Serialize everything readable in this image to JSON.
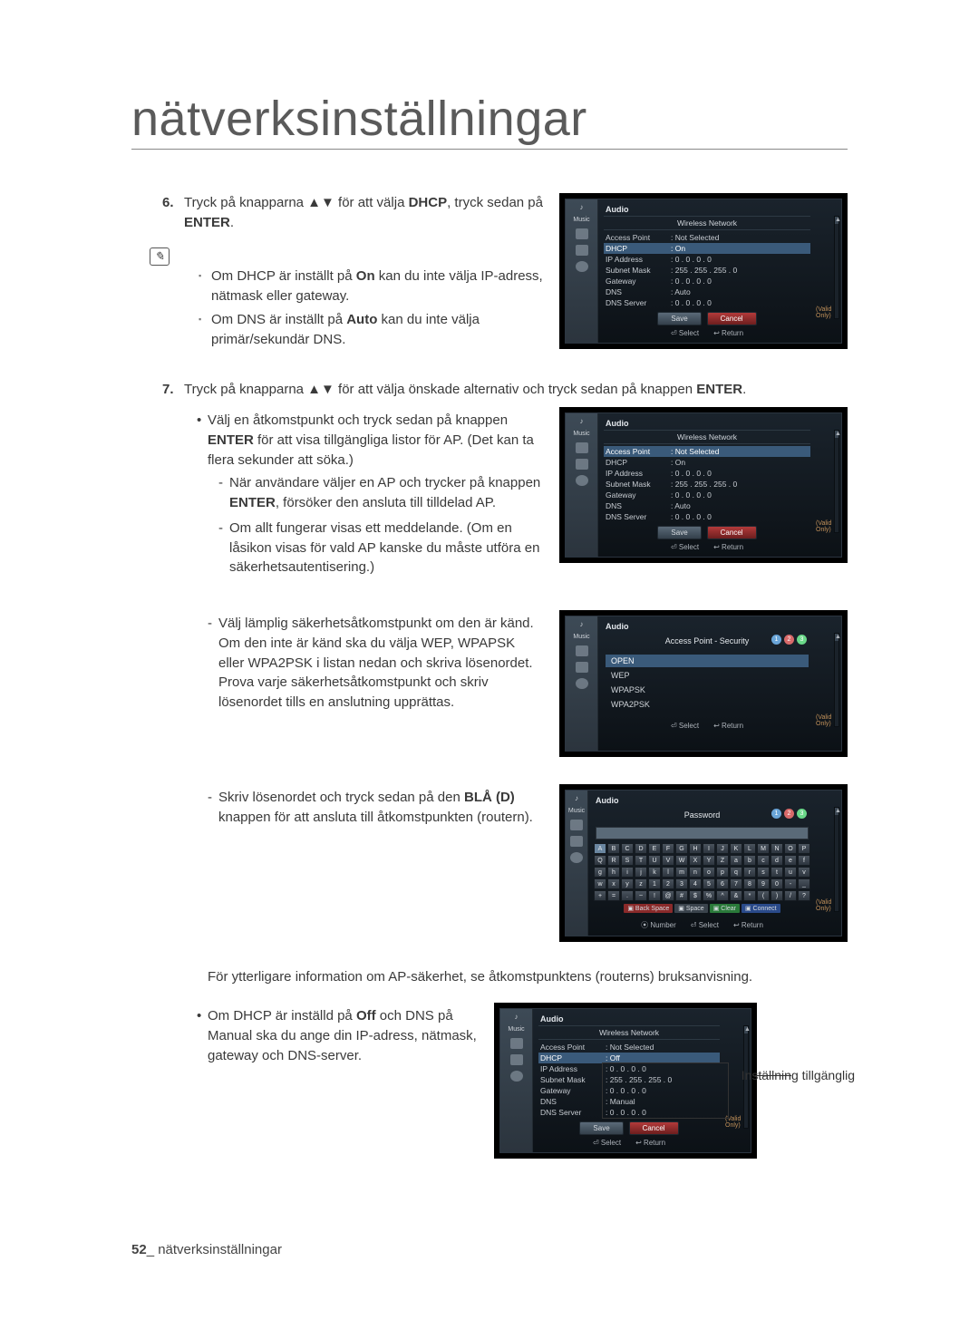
{
  "page": {
    "title": "nätverksinställningar",
    "footer_page": "52",
    "footer_text": "nätverksinställningar"
  },
  "step6": {
    "num": "6.",
    "text_before": "Tryck på knapparna ▲▼ för att välja ",
    "bold1": "DHCP",
    "text_mid": ", tryck sedan på ",
    "bold2": "ENTER",
    "text_after": ".",
    "note1_a": "Om DHCP är inställt på ",
    "note1_b": "On",
    "note1_c": " kan du inte välja IP-adress, nätmask eller gateway.",
    "note2_a": "Om DNS är inställt på ",
    "note2_b": "Auto",
    "note2_c": " kan du inte välja primär/sekundär DNS."
  },
  "step7": {
    "num": "7.",
    "intro_a": "Tryck på knapparna ▲▼ för att välja önskade alternativ och tryck sedan på knappen ",
    "intro_b": "ENTER",
    "intro_c": ".",
    "b1_a": "Välj en åtkomstpunkt och tryck sedan på knappen ",
    "b1_b": "ENTER",
    "b1_c": " för att visa tillgängliga listor för AP. (Det kan ta flera sekunder att söka.)",
    "d1_a": "När användare väljer en AP och trycker på knappen ",
    "d1_b": "ENTER",
    "d1_c": ", försöker den ansluta till tilldelad AP.",
    "d2": "Om allt fungerar visas ett meddelande. (Om en låsikon visas för vald AP kanske du måste utföra en säkerhetsautentisering.)",
    "d3": "Välj lämplig säkerhetsåtkomstpunkt om den är känd. Om den inte är känd ska du välja WEP, WPAPSK eller WPA2PSK i listan nedan och skriva lösenordet. Prova varje säkerhetsåtkomstpunkt och skriv lösenordet tills en anslutning upprättas.",
    "d4_a": "Skriv lösenordet och tryck sedan på den ",
    "d4_b": "BLÅ (D)",
    "d4_c": " knappen för att ansluta till åtkomstpunkten (routern).",
    "extra": "För ytterligare information om AP-säkerhet, se åtkomstpunktens (routerns) bruksanvisning.",
    "b2_a": "Om DHCP är inställd på ",
    "b2_b": "Off",
    "b2_c": " och DNS på Manual ska du ange din IP-adress, nätmask, gateway och DNS-server.",
    "annotation": "Inställning tillgänglig"
  },
  "tv_common": {
    "music": "Music",
    "photo": "Photo",
    "setup": "Setup",
    "audio": "Audio",
    "wireless": "Wireless Network",
    "select": "Select",
    "return": "Return",
    "number": "Number",
    "save": "Save",
    "cancel": "Cancel",
    "valid": "(Valid Only)",
    "ap_sec": "Access Point - Security",
    "password": "Password"
  },
  "tv1": {
    "rows": [
      [
        "Access Point",
        ": Not Selected"
      ],
      [
        "DHCP",
        ": On"
      ],
      [
        "IP Address",
        ": 0 . 0 . 0 . 0"
      ],
      [
        "Subnet Mask",
        ": 255 . 255 . 255 . 0"
      ],
      [
        "Gateway",
        ": 0 . 0 . 0 . 0"
      ],
      [
        "DNS",
        ": Auto"
      ],
      [
        "DNS Server",
        ": 0 . 0 . 0 . 0"
      ]
    ],
    "hl_index": 1
  },
  "tv2": {
    "rows": [
      [
        "Access Point",
        ": Not Selected"
      ],
      [
        "DHCP",
        ": On"
      ],
      [
        "IP Address",
        ": 0 . 0 . 0 . 0"
      ],
      [
        "Subnet Mask",
        ": 255 . 255 . 255 . 0"
      ],
      [
        "Gateway",
        ": 0 . 0 . 0 . 0"
      ],
      [
        "DNS",
        ": Auto"
      ],
      [
        "DNS Server",
        ": 0 . 0 . 0 . 0"
      ]
    ],
    "hl_index": 0
  },
  "tv3": {
    "items": [
      "OPEN",
      "WEP",
      "WPAPSK",
      "WPA2PSK"
    ],
    "sel": 0
  },
  "tv4": {
    "kb": [
      [
        "A",
        "B",
        "C",
        "D",
        "E",
        "F",
        "G",
        "H",
        "I",
        "J",
        "K",
        "L",
        "M",
        "N",
        "O",
        "P"
      ],
      [
        "Q",
        "R",
        "S",
        "T",
        "U",
        "V",
        "W",
        "X",
        "Y",
        "Z",
        "a",
        "b",
        "c",
        "d",
        "e",
        "f"
      ],
      [
        "g",
        "h",
        "i",
        "j",
        "k",
        "l",
        "m",
        "n",
        "o",
        "p",
        "q",
        "r",
        "s",
        "t",
        "u",
        "v"
      ],
      [
        "w",
        "x",
        "y",
        "z",
        "1",
        "2",
        "3",
        "4",
        "5",
        "6",
        "7",
        "8",
        "9",
        "0",
        "-",
        "_"
      ],
      [
        "+",
        "=",
        ".",
        "~",
        "!",
        "@",
        "#",
        "$",
        "%",
        "^",
        "&",
        "*",
        "(",
        ")",
        "/",
        "?"
      ]
    ],
    "legend": [
      "Back Space",
      "Space",
      "Clear",
      "Connect"
    ]
  },
  "tv5": {
    "rows": [
      [
        "Access Point",
        ": Not Selected"
      ],
      [
        "DHCP",
        ": Off"
      ],
      [
        "IP Address",
        ": 0 . 0 . 0 . 0"
      ],
      [
        "Subnet Mask",
        ": 255 . 255 . 255 . 0"
      ],
      [
        "Gateway",
        ": 0 . 0 . 0 . 0"
      ],
      [
        "DNS",
        ": Manual"
      ],
      [
        "DNS Server",
        ": 0 . 0 . 0 . 0"
      ]
    ],
    "hl_index": 1,
    "editable_rows": [
      2,
      3,
      4,
      6
    ]
  },
  "colors": {
    "text": "#3a3a3a",
    "rule": "#888888",
    "tv_bg": "#000000",
    "tv_panel_top": "#1a232c",
    "tv_panel_bot": "#0c1116",
    "tv_hl": "#3a5a7a",
    "valid": "#c2915a",
    "step_blue": "#6aa5d8",
    "step_red": "#d86a6a",
    "step_green": "#6ad889"
  }
}
